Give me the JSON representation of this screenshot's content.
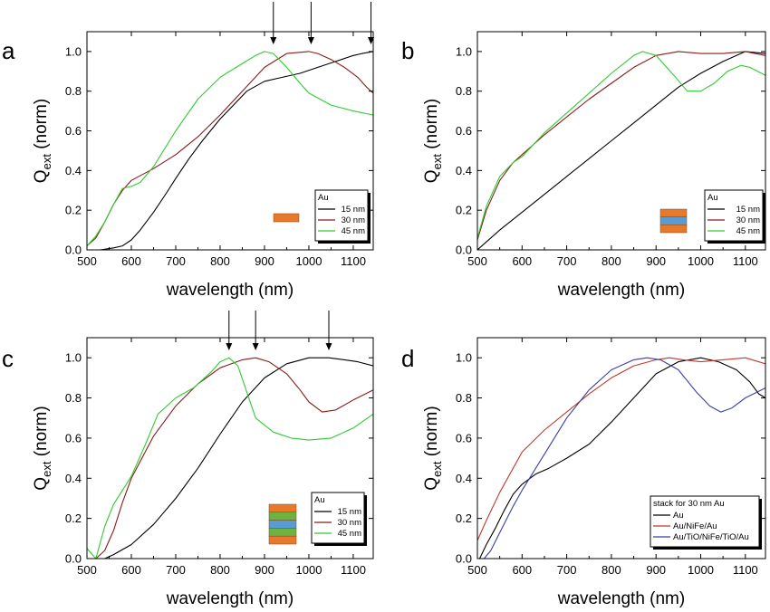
{
  "chart_data": [
    {
      "panel": "a",
      "type": "line",
      "xlabel": "wavelength (nm)",
      "ylabel": "Q",
      "ylabel_sub": "ext",
      "ylabel_suffix": " (norm)",
      "xlim": [
        500,
        1145
      ],
      "ylim": [
        0,
        1.1
      ],
      "xticks": [
        500,
        600,
        700,
        800,
        900,
        1000,
        1100
      ],
      "yticks": [
        0.0,
        0.2,
        0.4,
        0.6,
        0.8,
        1.0
      ],
      "ytick_labels": [
        "0.0",
        "0.2",
        "0.4",
        "0.6",
        "0.8",
        "1.0"
      ],
      "legend": {
        "title": "Au",
        "placement": "bottom-right",
        "entries": [
          {
            "label": "15 nm",
            "color": "#000000"
          },
          {
            "label": "30 nm",
            "color": "#8B1A1A"
          },
          {
            "label": "45 nm",
            "color": "#2ECC2E"
          }
        ]
      },
      "inset": {
        "layers": [
          "#E8792B"
        ]
      },
      "arrows_x": [
        920,
        1005,
        1140
      ],
      "series": [
        {
          "color": "#000000",
          "x": [
            500,
            530,
            560,
            580,
            600,
            620,
            650,
            680,
            700,
            730,
            760,
            800,
            830,
            860,
            900,
            940,
            980,
            1020,
            1060,
            1100,
            1120,
            1145
          ],
          "y": [
            0.0,
            0.0,
            0.01,
            0.02,
            0.05,
            0.1,
            0.19,
            0.29,
            0.36,
            0.46,
            0.55,
            0.66,
            0.73,
            0.8,
            0.85,
            0.87,
            0.89,
            0.92,
            0.95,
            0.98,
            0.99,
            1.0
          ]
        },
        {
          "color": "#8B1A1A",
          "x": [
            500,
            520,
            540,
            560,
            580,
            600,
            650,
            700,
            750,
            800,
            850,
            900,
            950,
            1000,
            1020,
            1050,
            1080,
            1110,
            1130,
            1145
          ],
          "y": [
            0.02,
            0.06,
            0.14,
            0.23,
            0.3,
            0.35,
            0.41,
            0.48,
            0.57,
            0.68,
            0.8,
            0.92,
            0.99,
            1.0,
            0.99,
            0.96,
            0.92,
            0.87,
            0.82,
            0.79
          ]
        },
        {
          "color": "#2ECC2E",
          "x": [
            500,
            520,
            540,
            560,
            580,
            600,
            620,
            650,
            700,
            750,
            800,
            850,
            880,
            900,
            920,
            950,
            980,
            1000,
            1050,
            1100,
            1145
          ],
          "y": [
            0.02,
            0.07,
            0.14,
            0.23,
            0.31,
            0.32,
            0.34,
            0.42,
            0.6,
            0.76,
            0.87,
            0.94,
            0.98,
            1.0,
            0.99,
            0.92,
            0.84,
            0.79,
            0.73,
            0.7,
            0.68
          ]
        }
      ]
    },
    {
      "panel": "b",
      "type": "line",
      "xlabel": "wavelength (nm)",
      "ylabel": "Q",
      "ylabel_sub": "ext",
      "ylabel_suffix": " (norm)",
      "xlim": [
        500,
        1145
      ],
      "ylim": [
        0,
        1.1
      ],
      "xticks": [
        500,
        600,
        700,
        800,
        900,
        1000,
        1100
      ],
      "yticks": [
        0.0,
        0.2,
        0.4,
        0.6,
        0.8,
        1.0
      ],
      "ytick_labels": [
        "0.0",
        "0.2",
        "0.4",
        "0.6",
        "0.8",
        "1.0"
      ],
      "legend": {
        "title": "Au",
        "placement": "bottom-right",
        "entries": [
          {
            "label": "15 nm",
            "color": "#000000"
          },
          {
            "label": "30 nm",
            "color": "#8B1A1A"
          },
          {
            "label": "45 nm",
            "color": "#2ECC2E"
          }
        ]
      },
      "inset": {
        "layers": [
          "#E8792B",
          "#5B9BD5",
          "#E8792B"
        ]
      },
      "arrows_x": [],
      "series": [
        {
          "color": "#000000",
          "x": [
            500,
            520,
            550,
            600,
            650,
            700,
            750,
            800,
            850,
            900,
            950,
            1000,
            1050,
            1100,
            1145
          ],
          "y": [
            0.0,
            0.04,
            0.1,
            0.19,
            0.28,
            0.37,
            0.46,
            0.55,
            0.64,
            0.73,
            0.82,
            0.89,
            0.95,
            1.0,
            0.99
          ]
        },
        {
          "color": "#8B1A1A",
          "x": [
            500,
            520,
            550,
            580,
            600,
            650,
            700,
            750,
            800,
            850,
            900,
            950,
            1000,
            1050,
            1100,
            1145
          ],
          "y": [
            0.05,
            0.2,
            0.35,
            0.44,
            0.48,
            0.58,
            0.67,
            0.76,
            0.84,
            0.92,
            0.98,
            1.0,
            0.99,
            0.99,
            1.0,
            0.98
          ]
        },
        {
          "color": "#2ECC2E",
          "x": [
            500,
            520,
            550,
            580,
            600,
            650,
            700,
            750,
            800,
            850,
            870,
            900,
            940,
            970,
            1000,
            1030,
            1060,
            1090,
            1110,
            1145
          ],
          "y": [
            0.06,
            0.22,
            0.37,
            0.44,
            0.47,
            0.59,
            0.69,
            0.79,
            0.89,
            0.98,
            1.0,
            0.98,
            0.88,
            0.8,
            0.8,
            0.84,
            0.9,
            0.93,
            0.92,
            0.88
          ]
        }
      ]
    },
    {
      "panel": "c",
      "type": "line",
      "xlabel": "wavelength (nm)",
      "ylabel": "Q",
      "ylabel_sub": "ext",
      "ylabel_suffix": " (norm)",
      "xlim": [
        500,
        1145
      ],
      "ylim": [
        0,
        1.1
      ],
      "xticks": [
        500,
        600,
        700,
        800,
        900,
        1000,
        1100
      ],
      "yticks": [
        0.0,
        0.2,
        0.4,
        0.6,
        0.8,
        1.0
      ],
      "ytick_labels": [
        "0.0",
        "0.2",
        "0.4",
        "0.6",
        "0.8",
        "1.0"
      ],
      "legend": {
        "title": "Au",
        "placement": "bottom-right",
        "entries": [
          {
            "label": "15 nm",
            "color": "#000000"
          },
          {
            "label": "30 nm",
            "color": "#8B1A1A"
          },
          {
            "label": "45 nm",
            "color": "#2ECC2E"
          }
        ]
      },
      "inset": {
        "layers": [
          "#E8792B",
          "#6DB33F",
          "#5B9BD5",
          "#6DB33F",
          "#E8792B"
        ]
      },
      "arrows_x": [
        820,
        880,
        1045
      ],
      "series": [
        {
          "color": "#000000",
          "x": [
            540,
            560,
            600,
            650,
            700,
            750,
            800,
            850,
            900,
            950,
            1000,
            1045,
            1080,
            1110,
            1145
          ],
          "y": [
            0.0,
            0.02,
            0.07,
            0.17,
            0.3,
            0.45,
            0.62,
            0.78,
            0.9,
            0.97,
            1.0,
            1.0,
            0.99,
            0.98,
            0.96
          ]
        },
        {
          "color": "#8B1A1A",
          "x": [
            520,
            540,
            560,
            580,
            600,
            650,
            700,
            750,
            800,
            850,
            880,
            910,
            950,
            980,
            1000,
            1030,
            1060,
            1100,
            1145
          ],
          "y": [
            0.0,
            0.04,
            0.14,
            0.28,
            0.4,
            0.61,
            0.76,
            0.87,
            0.95,
            0.99,
            1.0,
            0.98,
            0.92,
            0.84,
            0.78,
            0.73,
            0.74,
            0.79,
            0.84
          ]
        },
        {
          "color": "#2ECC2E",
          "x": [
            500,
            520,
            540,
            560,
            580,
            600,
            630,
            660,
            700,
            740,
            780,
            800,
            820,
            840,
            860,
            880,
            920,
            960,
            1000,
            1050,
            1100,
            1145
          ],
          "y": [
            0.05,
            0.0,
            0.16,
            0.27,
            0.34,
            0.41,
            0.56,
            0.72,
            0.8,
            0.85,
            0.93,
            0.98,
            1.0,
            0.96,
            0.83,
            0.7,
            0.63,
            0.6,
            0.59,
            0.6,
            0.65,
            0.72
          ]
        }
      ]
    },
    {
      "panel": "d",
      "type": "line",
      "xlabel": "wavelength (nm)",
      "ylabel": "Q",
      "ylabel_sub": "ext",
      "ylabel_suffix": " (norm)",
      "xlim": [
        500,
        1145
      ],
      "ylim": [
        0,
        1.1
      ],
      "xticks": [
        500,
        600,
        700,
        800,
        900,
        1000,
        1100
      ],
      "yticks": [
        0.0,
        0.2,
        0.4,
        0.6,
        0.8,
        1.0
      ],
      "ytick_labels": [
        "0.0",
        "0.2",
        "0.4",
        "0.6",
        "0.8",
        "1.0"
      ],
      "legend": {
        "title": "stack for 30 nm Au",
        "placement": "bottom-right",
        "entries": [
          {
            "label": "Au",
            "color": "#000000"
          },
          {
            "label": "Au/NiFe/Au",
            "color": "#C0392B"
          },
          {
            "label": "Au/TiO/NiFe/TiO/Au",
            "color": "#3B3FA0"
          }
        ]
      },
      "inset": null,
      "arrows_x": [],
      "series": [
        {
          "color": "#000000",
          "x": [
            505,
            520,
            540,
            560,
            580,
            600,
            630,
            660,
            700,
            750,
            800,
            850,
            900,
            950,
            1000,
            1040,
            1080,
            1110,
            1130,
            1145
          ],
          "y": [
            0.0,
            0.07,
            0.15,
            0.24,
            0.32,
            0.37,
            0.42,
            0.45,
            0.5,
            0.57,
            0.68,
            0.8,
            0.92,
            0.98,
            1.0,
            0.98,
            0.94,
            0.88,
            0.82,
            0.8
          ]
        },
        {
          "color": "#C0392B",
          "x": [
            500,
            520,
            550,
            600,
            650,
            700,
            750,
            800,
            850,
            900,
            930,
            960,
            1000,
            1050,
            1100,
            1145
          ],
          "y": [
            0.09,
            0.19,
            0.33,
            0.53,
            0.64,
            0.73,
            0.82,
            0.9,
            0.96,
            0.99,
            1.0,
            0.99,
            0.98,
            0.99,
            1.0,
            0.97
          ]
        },
        {
          "color": "#3B3FA0",
          "x": [
            515,
            530,
            550,
            580,
            600,
            650,
            700,
            750,
            800,
            850,
            880,
            910,
            950,
            990,
            1020,
            1045,
            1070,
            1100,
            1145
          ],
          "y": [
            0.0,
            0.04,
            0.13,
            0.26,
            0.34,
            0.52,
            0.7,
            0.84,
            0.94,
            0.99,
            1.0,
            0.99,
            0.94,
            0.83,
            0.76,
            0.73,
            0.75,
            0.8,
            0.85
          ]
        }
      ]
    }
  ]
}
